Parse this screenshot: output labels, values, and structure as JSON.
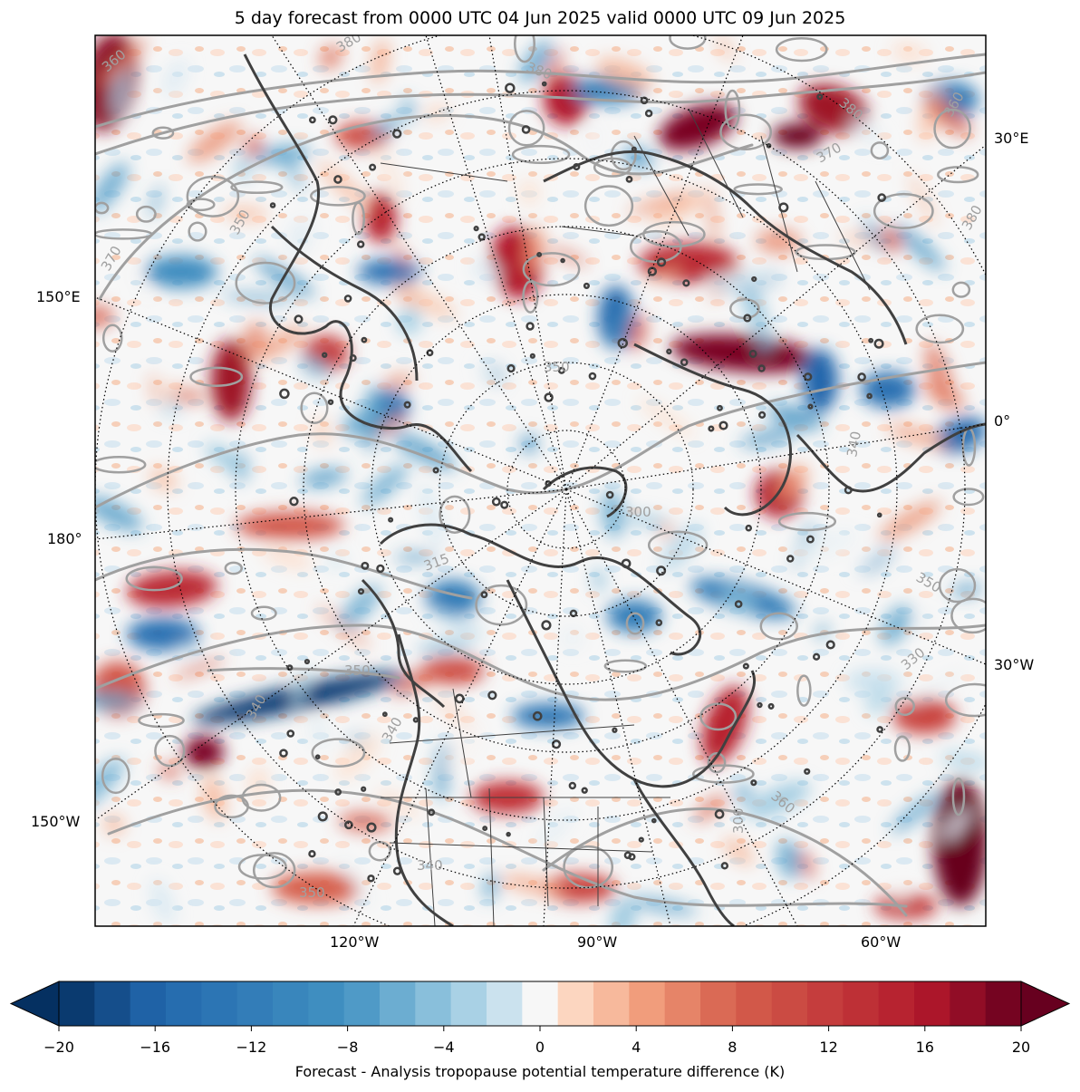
{
  "title": "5 day forecast from 0000 UTC 04 Jun 2025 valid 0000 UTC 09 Jun 2025",
  "longitude_labels": {
    "e30": "30°E",
    "e150": "150°E",
    "zero": "0°",
    "d180": "180°",
    "w30": "30°W",
    "w150": "150°W",
    "w120": "120°W",
    "w90": "90°W",
    "w60": "60°W"
  },
  "contour_labels": [
    "360",
    "380",
    "380",
    "350",
    "370",
    "350",
    "340",
    "340",
    "330",
    "350",
    "340",
    "360",
    "300",
    "340",
    "350",
    "370",
    "360",
    "380",
    "380",
    "350",
    "315",
    "300"
  ],
  "colorbar": {
    "label": "Forecast - Analysis tropopause potential temperature difference (K)",
    "ticks": [
      "−20",
      "−16",
      "−12",
      "−8",
      "−4",
      "0",
      "4",
      "8",
      "12",
      "16",
      "20"
    ],
    "min": -20,
    "max": 20,
    "step": 1.5,
    "extend": "both",
    "colormap": "RdBu_r"
  },
  "colors": {
    "deep_blue": "#053061",
    "blue": "#2166ac",
    "light_blue": "#92c5de",
    "neutral": "#f7f7f7",
    "light_red": "#f4a582",
    "red": "#b2182b",
    "deep_red": "#67001f",
    "contour_gray": "#a0a0a0",
    "coast": "#404040"
  }
}
